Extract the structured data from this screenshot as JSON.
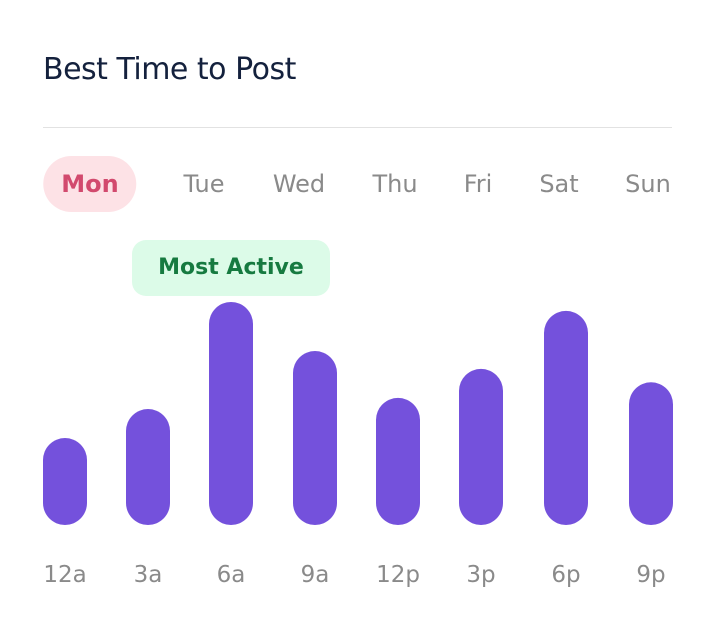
{
  "title": "Best Time to Post",
  "days": [
    {
      "label": "Mon",
      "active": true
    },
    {
      "label": "Tue",
      "active": false
    },
    {
      "label": "Wed",
      "active": false
    },
    {
      "label": "Thu",
      "active": false
    },
    {
      "label": "Fri",
      "active": false
    },
    {
      "label": "Sat",
      "active": false
    },
    {
      "label": "Sun",
      "active": false
    }
  ],
  "badge": "Most Active",
  "colors": {
    "bar": "#7451dc",
    "active_day_bg": "#fde2e6",
    "active_day_text": "#d24a6e",
    "badge_bg": "#dcfbe8",
    "badge_text": "#167a40",
    "title": "#14213d"
  },
  "chart_data": {
    "type": "bar",
    "categories": [
      "12a",
      "3a",
      "6a",
      "9a",
      "12p",
      "3p",
      "6p",
      "9p"
    ],
    "values": [
      39,
      52,
      100,
      78,
      57,
      70,
      96,
      64
    ],
    "ylim": [
      0,
      100
    ],
    "grid": false,
    "highlight_category": "6a"
  }
}
